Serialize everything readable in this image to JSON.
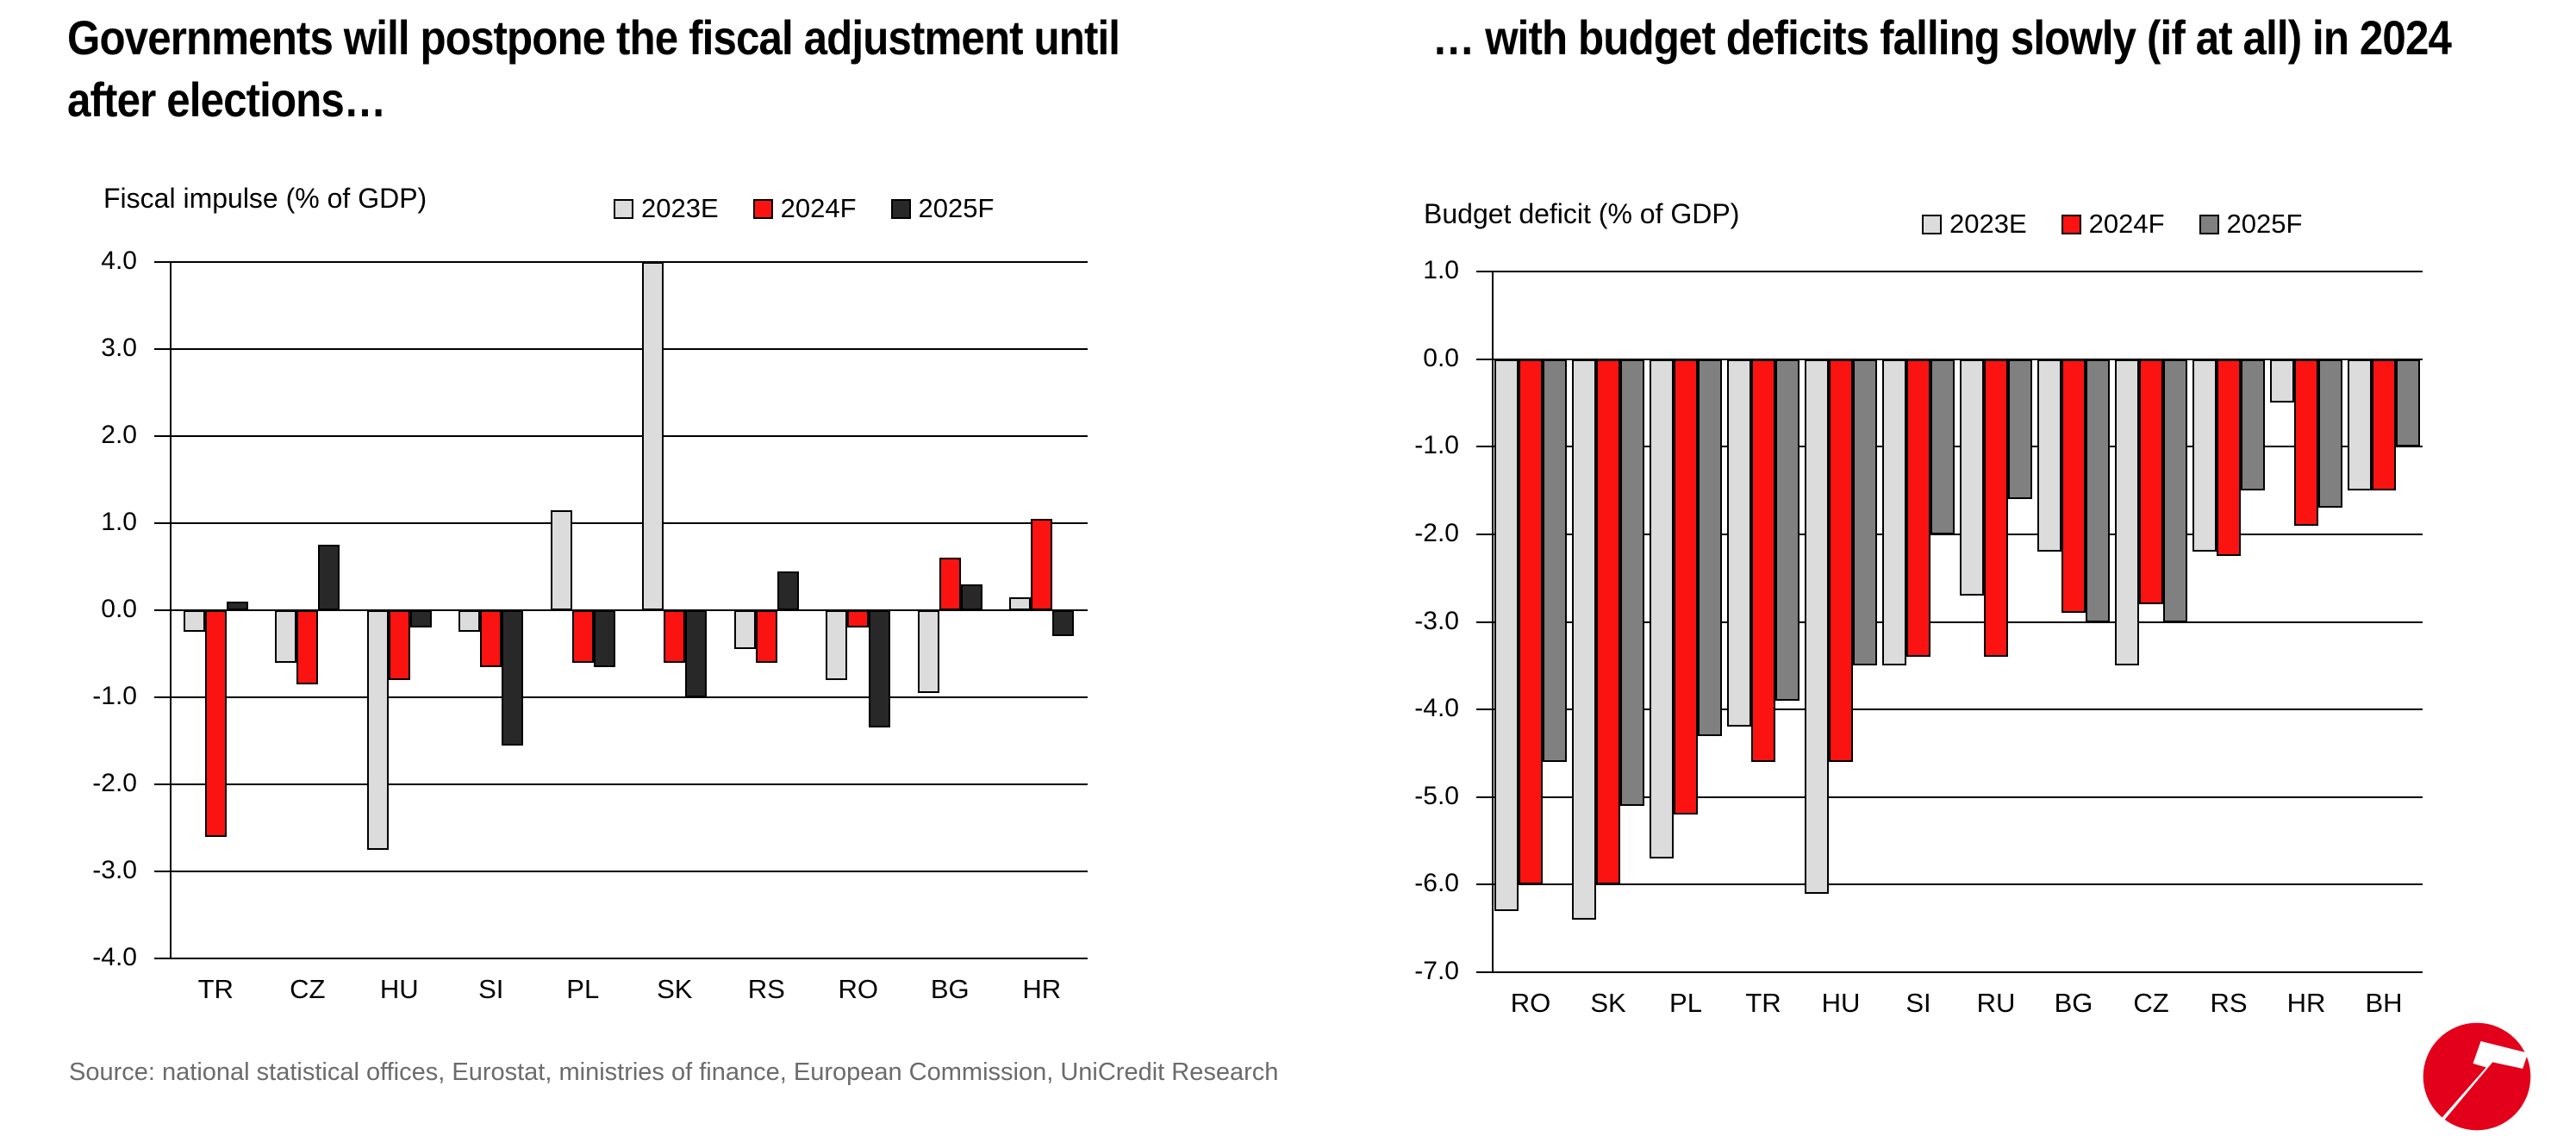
{
  "header": {
    "left_title": "Governments will postpone the fiscal adjustment until\nafter elections…",
    "right_title": "… with budget deficits falling slowly (if at all) in 2024"
  },
  "source": "Source: national statistical offices, Eurostat, ministries of finance, European Commission, UniCredit Research",
  "colors": {
    "series_2023": "#DCDCDC",
    "series_2024": "#FA1310",
    "series_2025_left": "#282828",
    "series_2025_right": "#808080",
    "gridline": "#000000",
    "source_text": "#6B6B6B",
    "brand_red": "#E2001A"
  },
  "chart_data": [
    {
      "type": "bar",
      "title": "Fiscal impulse (% of GDP)",
      "categories": [
        "TR",
        "CZ",
        "HU",
        "SI",
        "PL",
        "SK",
        "RS",
        "RO",
        "BG",
        "HR"
      ],
      "series": [
        {
          "name": "2023E",
          "color_key": "series_2023",
          "values": [
            -0.25,
            -0.6,
            -2.75,
            -0.25,
            1.15,
            4.0,
            -0.45,
            -0.8,
            -0.95,
            0.15
          ]
        },
        {
          "name": "2024F",
          "color_key": "series_2024",
          "values": [
            -2.6,
            -0.85,
            -0.8,
            -0.65,
            -0.6,
            -0.6,
            -0.6,
            -0.2,
            0.6,
            1.05
          ]
        },
        {
          "name": "2025F",
          "color_key": "series_2025_left",
          "values": [
            0.1,
            0.75,
            -0.2,
            -1.55,
            -0.65,
            -1.0,
            0.45,
            -1.35,
            0.3,
            -0.3
          ]
        }
      ],
      "ylim": [
        -4.0,
        4.0
      ],
      "ytick_step": 1.0,
      "grid": true,
      "legend_position": "top-right"
    },
    {
      "type": "bar",
      "title": "Budget deficit (% of GDP)",
      "categories": [
        "RO",
        "SK",
        "PL",
        "TR",
        "HU",
        "SI",
        "RU",
        "BG",
        "CZ",
        "RS",
        "HR",
        "BH"
      ],
      "series": [
        {
          "name": "2023E",
          "color_key": "series_2023",
          "values": [
            -6.3,
            -6.4,
            -5.7,
            -4.2,
            -6.1,
            -3.5,
            -2.7,
            -2.2,
            -3.5,
            -2.2,
            -0.5,
            -1.5
          ]
        },
        {
          "name": "2024F",
          "color_key": "series_2024",
          "values": [
            -6.0,
            -6.0,
            -5.2,
            -4.6,
            -4.6,
            -3.4,
            -3.4,
            -2.9,
            -2.8,
            -2.25,
            -1.9,
            -1.5
          ]
        },
        {
          "name": "2025F",
          "color_key": "series_2025_right",
          "values": [
            -4.6,
            -5.1,
            -4.3,
            -3.9,
            -3.5,
            -2.0,
            -1.6,
            -3.0,
            -3.0,
            -1.5,
            -1.7,
            -1.0
          ]
        }
      ],
      "ylim": [
        -7.0,
        1.0
      ],
      "ytick_step": 1.0,
      "grid": true,
      "legend_position": "top-right"
    }
  ],
  "logo": {
    "name": "unicredit-logo"
  }
}
